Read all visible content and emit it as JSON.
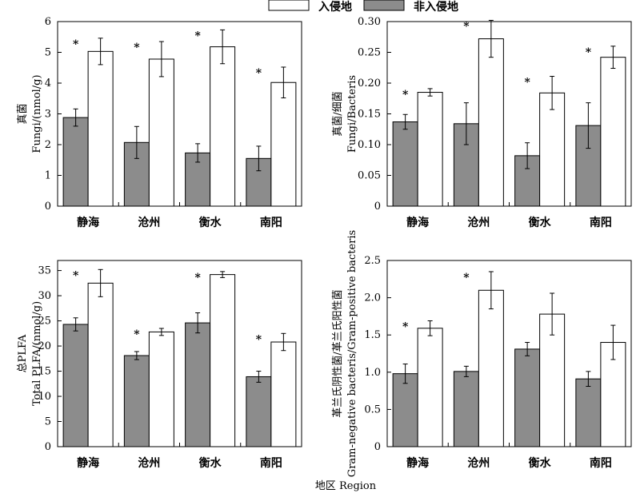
{
  "legend": {
    "invaded": "入侵地",
    "non_invaded": "非入侵地"
  },
  "colors": {
    "invaded": "#ffffff",
    "non_invaded": "#8c8c8c",
    "stroke": "#000000"
  },
  "x_axis_label": "地区 Region",
  "chart_data": [
    {
      "type": "bar",
      "categories": [
        "静海",
        "沧州",
        "衡水",
        "南阳"
      ],
      "ylabel_lines": [
        "真菌",
        "Fungi/(nmol/g)"
      ],
      "ylim": [
        0,
        6
      ],
      "yticks": [
        "0",
        "1",
        "2",
        "3",
        "4",
        "5",
        "6"
      ],
      "series": [
        {
          "key": "non_invaded",
          "name": "非入侵地",
          "values": [
            2.88,
            2.07,
            1.73,
            1.55
          ],
          "errors": [
            0.28,
            0.52,
            0.3,
            0.4
          ]
        },
        {
          "key": "invaded",
          "name": "入侵地",
          "values": [
            5.03,
            4.78,
            5.18,
            4.02
          ],
          "errors": [
            0.43,
            0.57,
            0.55,
            0.5
          ]
        }
      ],
      "significance": [
        "*",
        "*",
        "*",
        "*"
      ]
    },
    {
      "type": "bar",
      "categories": [
        "静海",
        "沧州",
        "衡水",
        "南阳"
      ],
      "ylabel_lines": [
        "真菌/细菌",
        "Fungi/Bacteris"
      ],
      "ylim": [
        0,
        0.3
      ],
      "yticks": [
        "0",
        "0.05",
        "0.10",
        "0.15",
        "0.20",
        "0.25",
        "0.30"
      ],
      "series": [
        {
          "key": "non_invaded",
          "name": "非入侵地",
          "values": [
            0.137,
            0.134,
            0.082,
            0.131
          ],
          "errors": [
            0.012,
            0.034,
            0.021,
            0.037
          ]
        },
        {
          "key": "invaded",
          "name": "入侵地",
          "values": [
            0.185,
            0.272,
            0.184,
            0.242
          ],
          "errors": [
            0.006,
            0.03,
            0.027,
            0.018
          ]
        }
      ],
      "significance": [
        "*",
        "*",
        "*",
        "*"
      ]
    },
    {
      "type": "bar",
      "categories": [
        "静海",
        "沧州",
        "衡水",
        "南阳"
      ],
      "ylabel_lines": [
        "总PLFA",
        "Total PLFA/(nmol/g)"
      ],
      "ylim": [
        0,
        37
      ],
      "yticks": [
        "0",
        "5",
        "10",
        "15",
        "20",
        "25",
        "30",
        "35"
      ],
      "ytick_values": [
        0,
        5,
        10,
        15,
        20,
        25,
        30,
        35
      ],
      "series": [
        {
          "key": "non_invaded",
          "name": "非入侵地",
          "values": [
            24.3,
            18.1,
            24.6,
            13.9
          ],
          "errors": [
            1.3,
            0.8,
            2.0,
            1.1
          ]
        },
        {
          "key": "invaded",
          "name": "入侵地",
          "values": [
            32.5,
            22.8,
            34.2,
            20.8
          ],
          "errors": [
            2.7,
            0.7,
            0.6,
            1.7
          ]
        }
      ],
      "significance": [
        "*",
        "*",
        "*",
        "*"
      ]
    },
    {
      "type": "bar",
      "categories": [
        "静海",
        "沧州",
        "衡水",
        "南阳"
      ],
      "ylabel_lines": [
        "革兰氏阴性菌/革兰氏阳性菌",
        "Gram-negative bacteris/Gram-positive bacteris"
      ],
      "ylim": [
        0,
        2.5
      ],
      "yticks": [
        "0",
        "0.5",
        "1.0",
        "1.5",
        "2.0",
        "2.5"
      ],
      "series": [
        {
          "key": "non_invaded",
          "name": "非入侵地",
          "values": [
            0.98,
            1.01,
            1.31,
            0.91
          ],
          "errors": [
            0.13,
            0.07,
            0.09,
            0.1
          ]
        },
        {
          "key": "invaded",
          "name": "入侵地",
          "values": [
            1.59,
            2.1,
            1.78,
            1.4
          ],
          "errors": [
            0.1,
            0.25,
            0.28,
            0.23
          ]
        }
      ],
      "significance": [
        "*",
        "*",
        "",
        ""
      ]
    }
  ]
}
